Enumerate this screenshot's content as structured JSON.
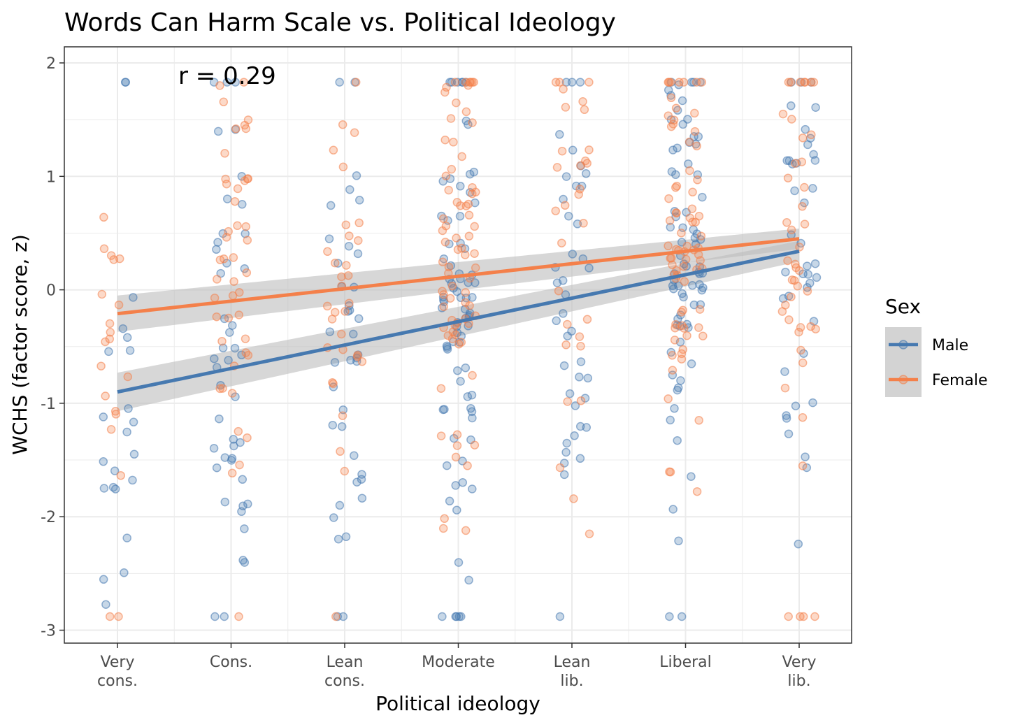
{
  "chart_data": {
    "type": "scatter",
    "title": "Words Can Harm Scale vs. Political Ideology",
    "xlabel": "Political ideology",
    "ylabel": "WCHS (factor score, z)",
    "categories": [
      [
        "Very",
        "cons."
      ],
      [
        "Cons."
      ],
      [
        "Lean",
        "cons."
      ],
      [
        "Moderate"
      ],
      [
        "Lean",
        "lib."
      ],
      [
        "Liberal"
      ],
      [
        "Very",
        "lib."
      ]
    ],
    "ylim": [
      -3.1,
      2.15
    ],
    "yticks": [
      2,
      1,
      0,
      -1,
      -2,
      -3
    ],
    "grid": true,
    "annotation": "r = 0.29",
    "legend": {
      "title": "Sex",
      "position": "right",
      "entries": [
        "Male",
        "Female"
      ]
    },
    "series": [
      {
        "name": "Male",
        "color": "#4679b0",
        "fit": {
          "start": -0.9,
          "end": 0.34,
          "ci_start": 0.17,
          "ci_end": 0.09
        },
        "points_per_category": [
          22,
          45,
          38,
          80,
          40,
          75,
          40
        ]
      },
      {
        "name": "Female",
        "color": "#f4804a",
        "fit": {
          "start": -0.21,
          "end": 0.45,
          "ci_start": 0.16,
          "ci_end": 0.09
        },
        "points_per_category": [
          20,
          45,
          32,
          75,
          30,
          75,
          45
        ]
      }
    ],
    "ci_color": "#bdbdbd"
  }
}
